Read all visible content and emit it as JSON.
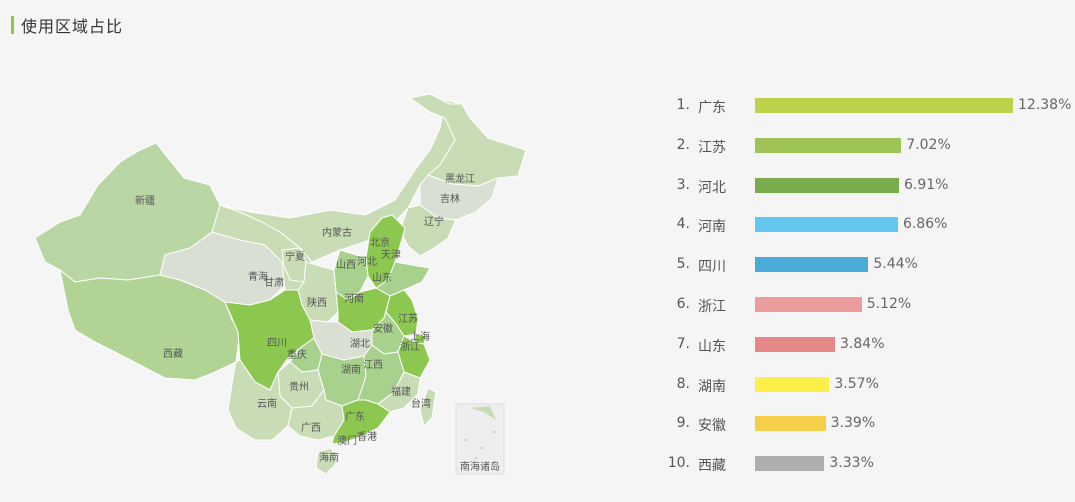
{
  "header": {
    "title": "使用区域占比"
  },
  "map": {
    "labels": {
      "xinjiang": "新疆",
      "xizang": "西藏",
      "qinghai": "青海",
      "gansu": "甘肃",
      "ningxia": "宁夏",
      "neimenggu": "内蒙古",
      "heilongjiang": "黑龙江",
      "jilin": "吉林",
      "liaoning": "辽宁",
      "beijing": "北京",
      "tianjin": "天津",
      "hebei": "河北",
      "shanxi": "山西",
      "shandong": "山东",
      "shaanxi": "陕西",
      "henan": "河南",
      "jiangsu": "江苏",
      "anhui": "安徽",
      "shanghai": "上海",
      "zhejiang": "浙江",
      "hubei": "湖北",
      "sichuan": "四川",
      "chongqing": "重庆",
      "guizhou": "贵州",
      "hunan": "湖南",
      "jiangxi": "江西",
      "fujian": "福建",
      "taiwan": "台湾",
      "yunnan": "云南",
      "guangxi": "广西",
      "guangdong": "广东",
      "xianggang": "香港",
      "aomen": "澳门",
      "hainan": "海南",
      "nanhai": "南海诸岛"
    },
    "colors": {
      "high": "#8cc850",
      "mid": "#a9d18e",
      "low": "#c8ddb5",
      "none": "#d9dfd3",
      "line": "#ffffff"
    }
  },
  "chart_data": {
    "type": "bar",
    "orientation": "horizontal",
    "ranks": [
      "1.",
      "2.",
      "3.",
      "4.",
      "5.",
      "6.",
      "7.",
      "8.",
      "9.",
      "10."
    ],
    "categories": [
      "广东",
      "江苏",
      "河北",
      "河南",
      "四川",
      "浙江",
      "山东",
      "湖南",
      "安徽",
      "西藏"
    ],
    "values": [
      12.38,
      7.02,
      6.91,
      6.86,
      5.44,
      5.12,
      3.84,
      3.57,
      3.39,
      3.33
    ],
    "value_labels": [
      "12.38%",
      "7.02%",
      "6.91%",
      "6.86%",
      "5.44%",
      "5.12%",
      "3.84%",
      "3.57%",
      "3.39%",
      "3.33%"
    ],
    "colors": [
      "#bdd14b",
      "#9dc454",
      "#7aab4c",
      "#62c7ec",
      "#4aabd9",
      "#eb9d9d",
      "#e48888",
      "#fcef4a",
      "#f6cf4a",
      "#aeaeae"
    ],
    "xlim": [
      0,
      12.38
    ]
  }
}
